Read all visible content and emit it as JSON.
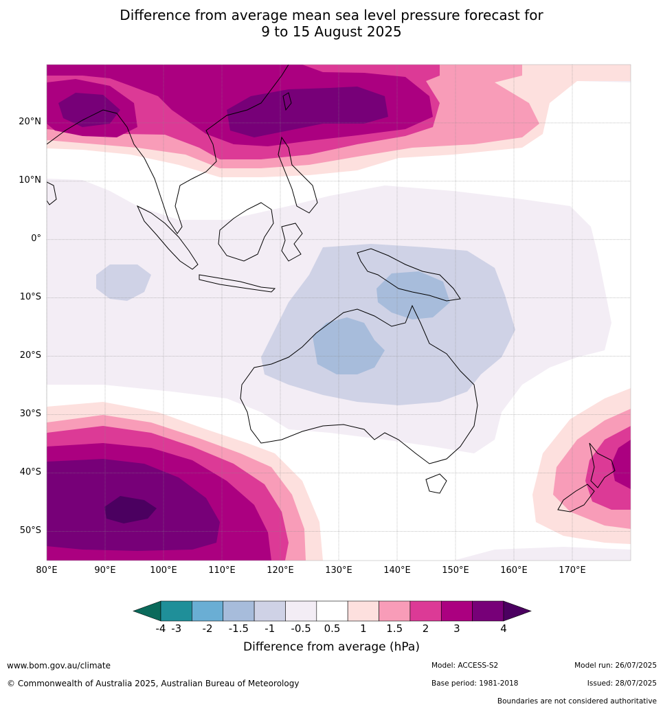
{
  "title_line1": "Difference from average mean sea level pressure forecast for",
  "title_line2": "9 to 15 August 2025",
  "map": {
    "lon_range": [
      80,
      180
    ],
    "lat_range": [
      -55,
      30
    ],
    "lat_ticks": [
      {
        "value": 20,
        "label": "20°N"
      },
      {
        "value": 10,
        "label": "10°N"
      },
      {
        "value": 0,
        "label": "0°"
      },
      {
        "value": -10,
        "label": "10°S"
      },
      {
        "value": -20,
        "label": "20°S"
      },
      {
        "value": -30,
        "label": "30°S"
      },
      {
        "value": -40,
        "label": "40°S"
      },
      {
        "value": -50,
        "label": "50°S"
      }
    ],
    "lon_ticks": [
      {
        "value": 80,
        "label": "80°E"
      },
      {
        "value": 90,
        "label": "90°E"
      },
      {
        "value": 100,
        "label": "100°E"
      },
      {
        "value": 110,
        "label": "110°E"
      },
      {
        "value": 120,
        "label": "120°E"
      },
      {
        "value": 130,
        "label": "130°E"
      },
      {
        "value": 140,
        "label": "140°E"
      },
      {
        "value": 150,
        "label": "150°E"
      },
      {
        "value": 160,
        "label": "160°E"
      },
      {
        "value": 170,
        "label": "170°E"
      }
    ],
    "grid": true
  },
  "colorbar": {
    "label": "Difference from average (hPa)",
    "ticks": [
      "-4",
      "-3",
      "-2",
      "-1.5",
      "-1",
      "-0.5",
      "0.5",
      "1",
      "1.5",
      "2",
      "3",
      "4"
    ],
    "under_color": "#0b6a5b",
    "over_color": "#4b0060",
    "colors": [
      "#1f8f99",
      "#6aaed4",
      "#a7bcdb",
      "#cfd2e6",
      "#f3edf5",
      "#ffffff",
      "#fde0de",
      "#f89cb8",
      "#dc3a96",
      "#ab0080",
      "#770078"
    ]
  },
  "footer": {
    "website": "www.bom.gov.au/climate",
    "copyright": "© Commonwealth of Australia 2025, Australian Bureau of Meteorology",
    "model": "Model: ACCESS-S2",
    "base_period": "Base period: 1981-2018",
    "model_run": "Model run: 26/07/2025",
    "issued": "Issued: 28/07/2025",
    "boundaries": "Boundaries are not considered authoritative"
  }
}
